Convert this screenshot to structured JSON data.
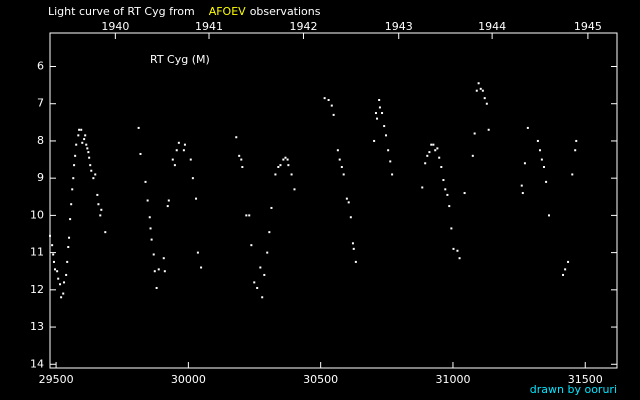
{
  "chart_data": {
    "type": "scatter",
    "title": "Light curve of RT Cyg from",
    "title_source": "AFOEV",
    "title_suffix": "observations",
    "credit": "drawn by ooruri",
    "title_source_color": "#ffff00",
    "credit_color": "#00e5ff",
    "series": [
      {
        "name": "RT Cyg (M)",
        "color": "#ffffff",
        "x": [
          29477,
          29485,
          29489,
          29492,
          29496,
          29504,
          29508,
          29515,
          29519,
          29527,
          29530,
          29538,
          29542,
          29546,
          29549,
          29553,
          29557,
          29561,
          29565,
          29568,
          29572,
          29576,
          29584,
          29587,
          29595,
          29599,
          29606,
          29610,
          29614,
          29618,
          29622,
          29625,
          29629,
          29633,
          29641,
          29648,
          29656,
          29660,
          29667,
          29671,
          29686,
          29812,
          29819,
          29838,
          29846,
          29854,
          29857,
          29861,
          29869,
          29873,
          29880,
          29888,
          29907,
          29911,
          29922,
          29926,
          29941,
          29949,
          29956,
          29964,
          29983,
          29987,
          30009,
          30017,
          30029,
          30036,
          30048,
          30181,
          30192,
          30200,
          30204,
          30219,
          30230,
          30238,
          30249,
          30260,
          30272,
          30279,
          30287,
          30298,
          30306,
          30314,
          30329,
          30340,
          30348,
          30359,
          30367,
          30375,
          30378,
          30390,
          30401,
          30515,
          30530,
          30542,
          30549,
          30565,
          30572,
          30580,
          30587,
          30599,
          30606,
          30614,
          30622,
          30625,
          30633,
          30702,
          30709,
          30713,
          30721,
          30724,
          30732,
          30740,
          30747,
          30755,
          30763,
          30770,
          30884,
          30895,
          30903,
          30911,
          30918,
          30926,
          30933,
          30941,
          30948,
          30956,
          30964,
          30971,
          30979,
          30986,
          30994,
          31002,
          31017,
          31025,
          31044,
          31075,
          31082,
          31090,
          31097,
          31105,
          31113,
          31120,
          31128,
          31135,
          31260,
          31264,
          31272,
          31283,
          31321,
          31329,
          31336,
          31344,
          31352,
          31363,
          31416,
          31424,
          31435,
          31451,
          31462,
          31466
        ],
        "values": [
          10.55,
          10.8,
          11.05,
          11.25,
          11.45,
          11.5,
          11.7,
          11.85,
          12.2,
          12.1,
          11.8,
          11.6,
          11.25,
          10.85,
          10.6,
          10.1,
          9.7,
          9.3,
          9.0,
          8.65,
          8.4,
          8.1,
          7.85,
          7.7,
          7.7,
          8.05,
          7.95,
          7.85,
          8.1,
          8.2,
          8.3,
          8.45,
          8.65,
          8.8,
          9.0,
          8.9,
          9.45,
          9.7,
          10.0,
          9.85,
          10.45,
          7.65,
          8.35,
          9.1,
          9.6,
          10.05,
          10.35,
          10.65,
          11.05,
          11.5,
          11.95,
          11.45,
          11.15,
          11.5,
          9.75,
          9.6,
          8.5,
          8.65,
          8.25,
          8.05,
          8.25,
          8.1,
          8.5,
          9.0,
          9.55,
          11.0,
          11.4,
          7.9,
          8.4,
          8.5,
          8.7,
          10.0,
          10.0,
          10.8,
          11.8,
          11.95,
          11.4,
          12.2,
          11.6,
          11.0,
          10.45,
          9.8,
          8.9,
          8.7,
          8.65,
          8.5,
          8.45,
          8.5,
          8.65,
          8.9,
          9.3,
          6.85,
          6.9,
          7.05,
          7.3,
          8.25,
          8.5,
          8.7,
          8.9,
          9.55,
          9.65,
          10.05,
          10.75,
          10.9,
          11.25,
          8.0,
          7.25,
          7.4,
          6.9,
          7.1,
          7.25,
          7.6,
          7.85,
          8.25,
          8.55,
          8.9,
          9.25,
          8.6,
          8.4,
          8.3,
          8.1,
          8.1,
          8.25,
          8.2,
          8.45,
          8.7,
          9.05,
          9.3,
          9.45,
          9.75,
          10.35,
          10.9,
          10.95,
          11.15,
          9.4,
          8.4,
          7.8,
          6.65,
          6.45,
          6.6,
          6.65,
          6.85,
          7.0,
          7.7,
          9.2,
          9.4,
          8.6,
          7.65,
          8.0,
          8.25,
          8.5,
          8.7,
          9.1,
          10.0,
          11.6,
          11.45,
          11.25,
          8.9,
          8.25,
          8.0
        ]
      }
    ],
    "xlim": [
      29477,
      31620
    ],
    "xticks": [
      29500,
      30000,
      30500,
      31000,
      31500
    ],
    "x2ticks": [
      {
        "value": 29724,
        "label": "1940"
      },
      {
        "value": 30078,
        "label": "1941"
      },
      {
        "value": 30435,
        "label": "1942"
      },
      {
        "value": 30795,
        "label": "1943"
      },
      {
        "value": 31148,
        "label": "1944"
      },
      {
        "value": 31510,
        "label": "1945"
      }
    ],
    "ylim": [
      14.1,
      5.1
    ],
    "yticks": [
      6,
      7,
      8,
      9,
      10,
      11,
      12,
      13,
      14
    ],
    "grid": false
  }
}
